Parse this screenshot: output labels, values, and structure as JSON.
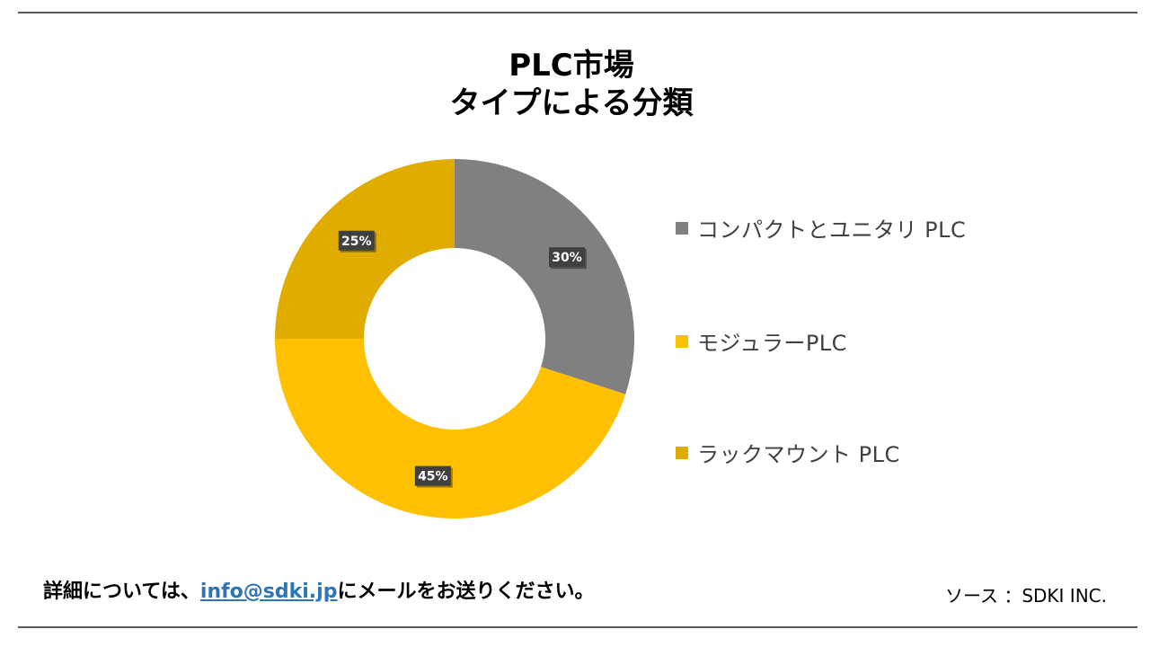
{
  "chart_data": {
    "type": "pie",
    "title_line1": "PLC市場",
    "title_line2": "タイプによる分類",
    "categories": [
      "コンパクトとユニタリ PLC",
      "モジュラーPLC",
      "ラックマウント PLC"
    ],
    "values": [
      30,
      45,
      25
    ],
    "data_labels": [
      "30%",
      "45%",
      "25%"
    ],
    "colors": [
      "#808080",
      "#ffc000",
      "#e0ac00"
    ],
    "legend_position": "right",
    "style": "donut"
  },
  "footer": {
    "prefix": "詳細については、",
    "email": "info@sdki.jp",
    "suffix": "にメールをお送りください。",
    "source": "ソース ：SDKI INC."
  }
}
